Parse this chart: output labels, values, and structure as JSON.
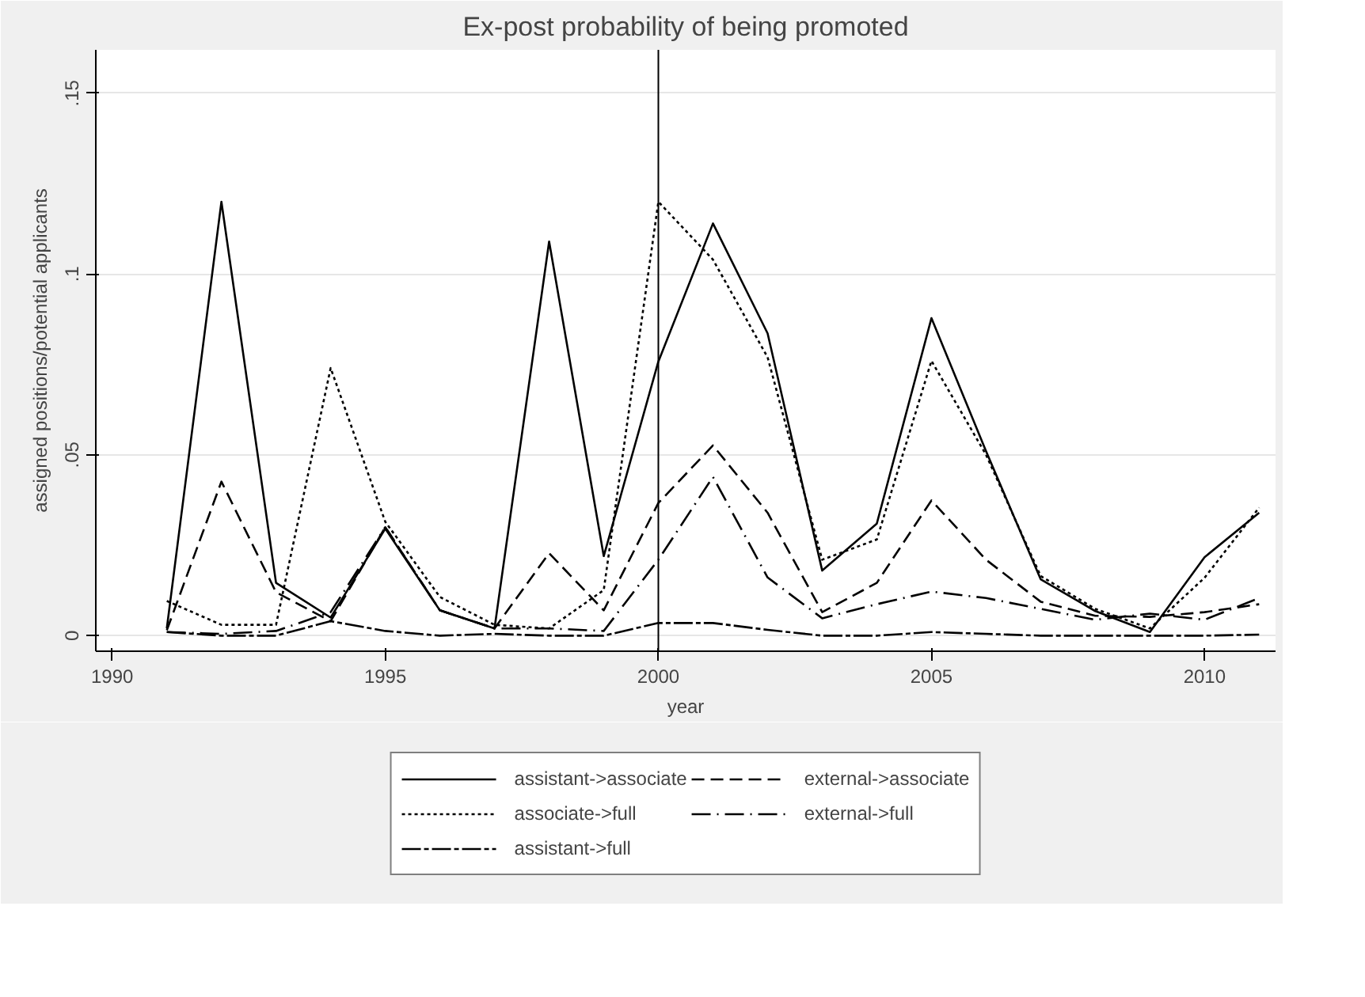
{
  "chart_data": {
    "type": "line",
    "title": "Ex-post probability of being promoted",
    "xlabel": "year",
    "ylabel": "assigned positions/potential applicants",
    "x": [
      1991,
      1992,
      1993,
      1994,
      1995,
      1996,
      1997,
      1998,
      1999,
      2000,
      2001,
      2002,
      2003,
      2004,
      2005,
      2006,
      2007,
      2008,
      2009,
      2010,
      2011
    ],
    "series": [
      {
        "name": "assistant->associate",
        "color": "#000000",
        "line_style": "solid",
        "values": [
          0.002,
          0.12,
          0.0146,
          0.005,
          0.0296,
          0.007,
          0.002,
          0.109,
          0.022,
          0.0758,
          0.114,
          0.0836,
          0.018,
          0.031,
          0.0878,
          0.051,
          0.0156,
          0.0068,
          0.001,
          0.0217,
          0.034
        ]
      },
      {
        "name": "external->associate",
        "color": "#000000",
        "line_style": "dashed",
        "values": [
          0.0015,
          0.0426,
          0.012,
          0.004,
          0.03,
          0.007,
          0.002,
          0.0228,
          0.007,
          0.0367,
          0.0526,
          0.034,
          0.0065,
          0.0146,
          0.0374,
          0.021,
          0.0094,
          0.0055,
          0.0052,
          0.0065,
          0.0087
        ]
      },
      {
        "name": "associate->full",
        "color": "#000000",
        "line_style": "dotted",
        "values": [
          0.0096,
          0.003,
          0.003,
          0.074,
          0.0315,
          0.0107,
          0.003,
          0.002,
          0.0126,
          0.12,
          0.104,
          0.077,
          0.021,
          0.0266,
          0.076,
          0.05,
          0.0165,
          0.0074,
          0.002,
          0.016,
          0.0354
        ]
      },
      {
        "name": "external->full",
        "color": "#000000",
        "line_style": "dashdot",
        "values": [
          0.001,
          0.0005,
          0.0013,
          0.0065,
          0.03,
          0.007,
          0.002,
          0.002,
          0.0013,
          0.021,
          0.0439,
          0.0161,
          0.0048,
          0.0087,
          0.0122,
          0.0104,
          0.0074,
          0.0044,
          0.0061,
          0.0044,
          0.0104
        ]
      },
      {
        "name": "assistant->full",
        "color": "#000000",
        "line_style": "longdash",
        "values": [
          0.001,
          0,
          0,
          0.004,
          0.0013,
          0,
          0.0005,
          0,
          0,
          0.0035,
          0.0035,
          0.0016,
          0,
          0,
          0.001,
          0.0005,
          0,
          0,
          0,
          0,
          0.0003
        ]
      }
    ],
    "xlim": [
      1989.7,
      2011.3
    ],
    "ylim": [
      -0.0043,
      0.162
    ],
    "xticks": [
      1990,
      1995,
      2000,
      2005,
      2010
    ],
    "yticks": [
      {
        "value": 0,
        "label": "0"
      },
      {
        "value": 0.05,
        "label": ".05"
      },
      {
        "value": 0.1,
        "label": ".1"
      },
      {
        "value": 0.15,
        "label": ".15"
      }
    ],
    "ref_lines": [
      {
        "axis": "x",
        "value": 2000,
        "color": "#000000"
      }
    ],
    "grid": "y",
    "legend": "bottom",
    "marker": "none"
  }
}
